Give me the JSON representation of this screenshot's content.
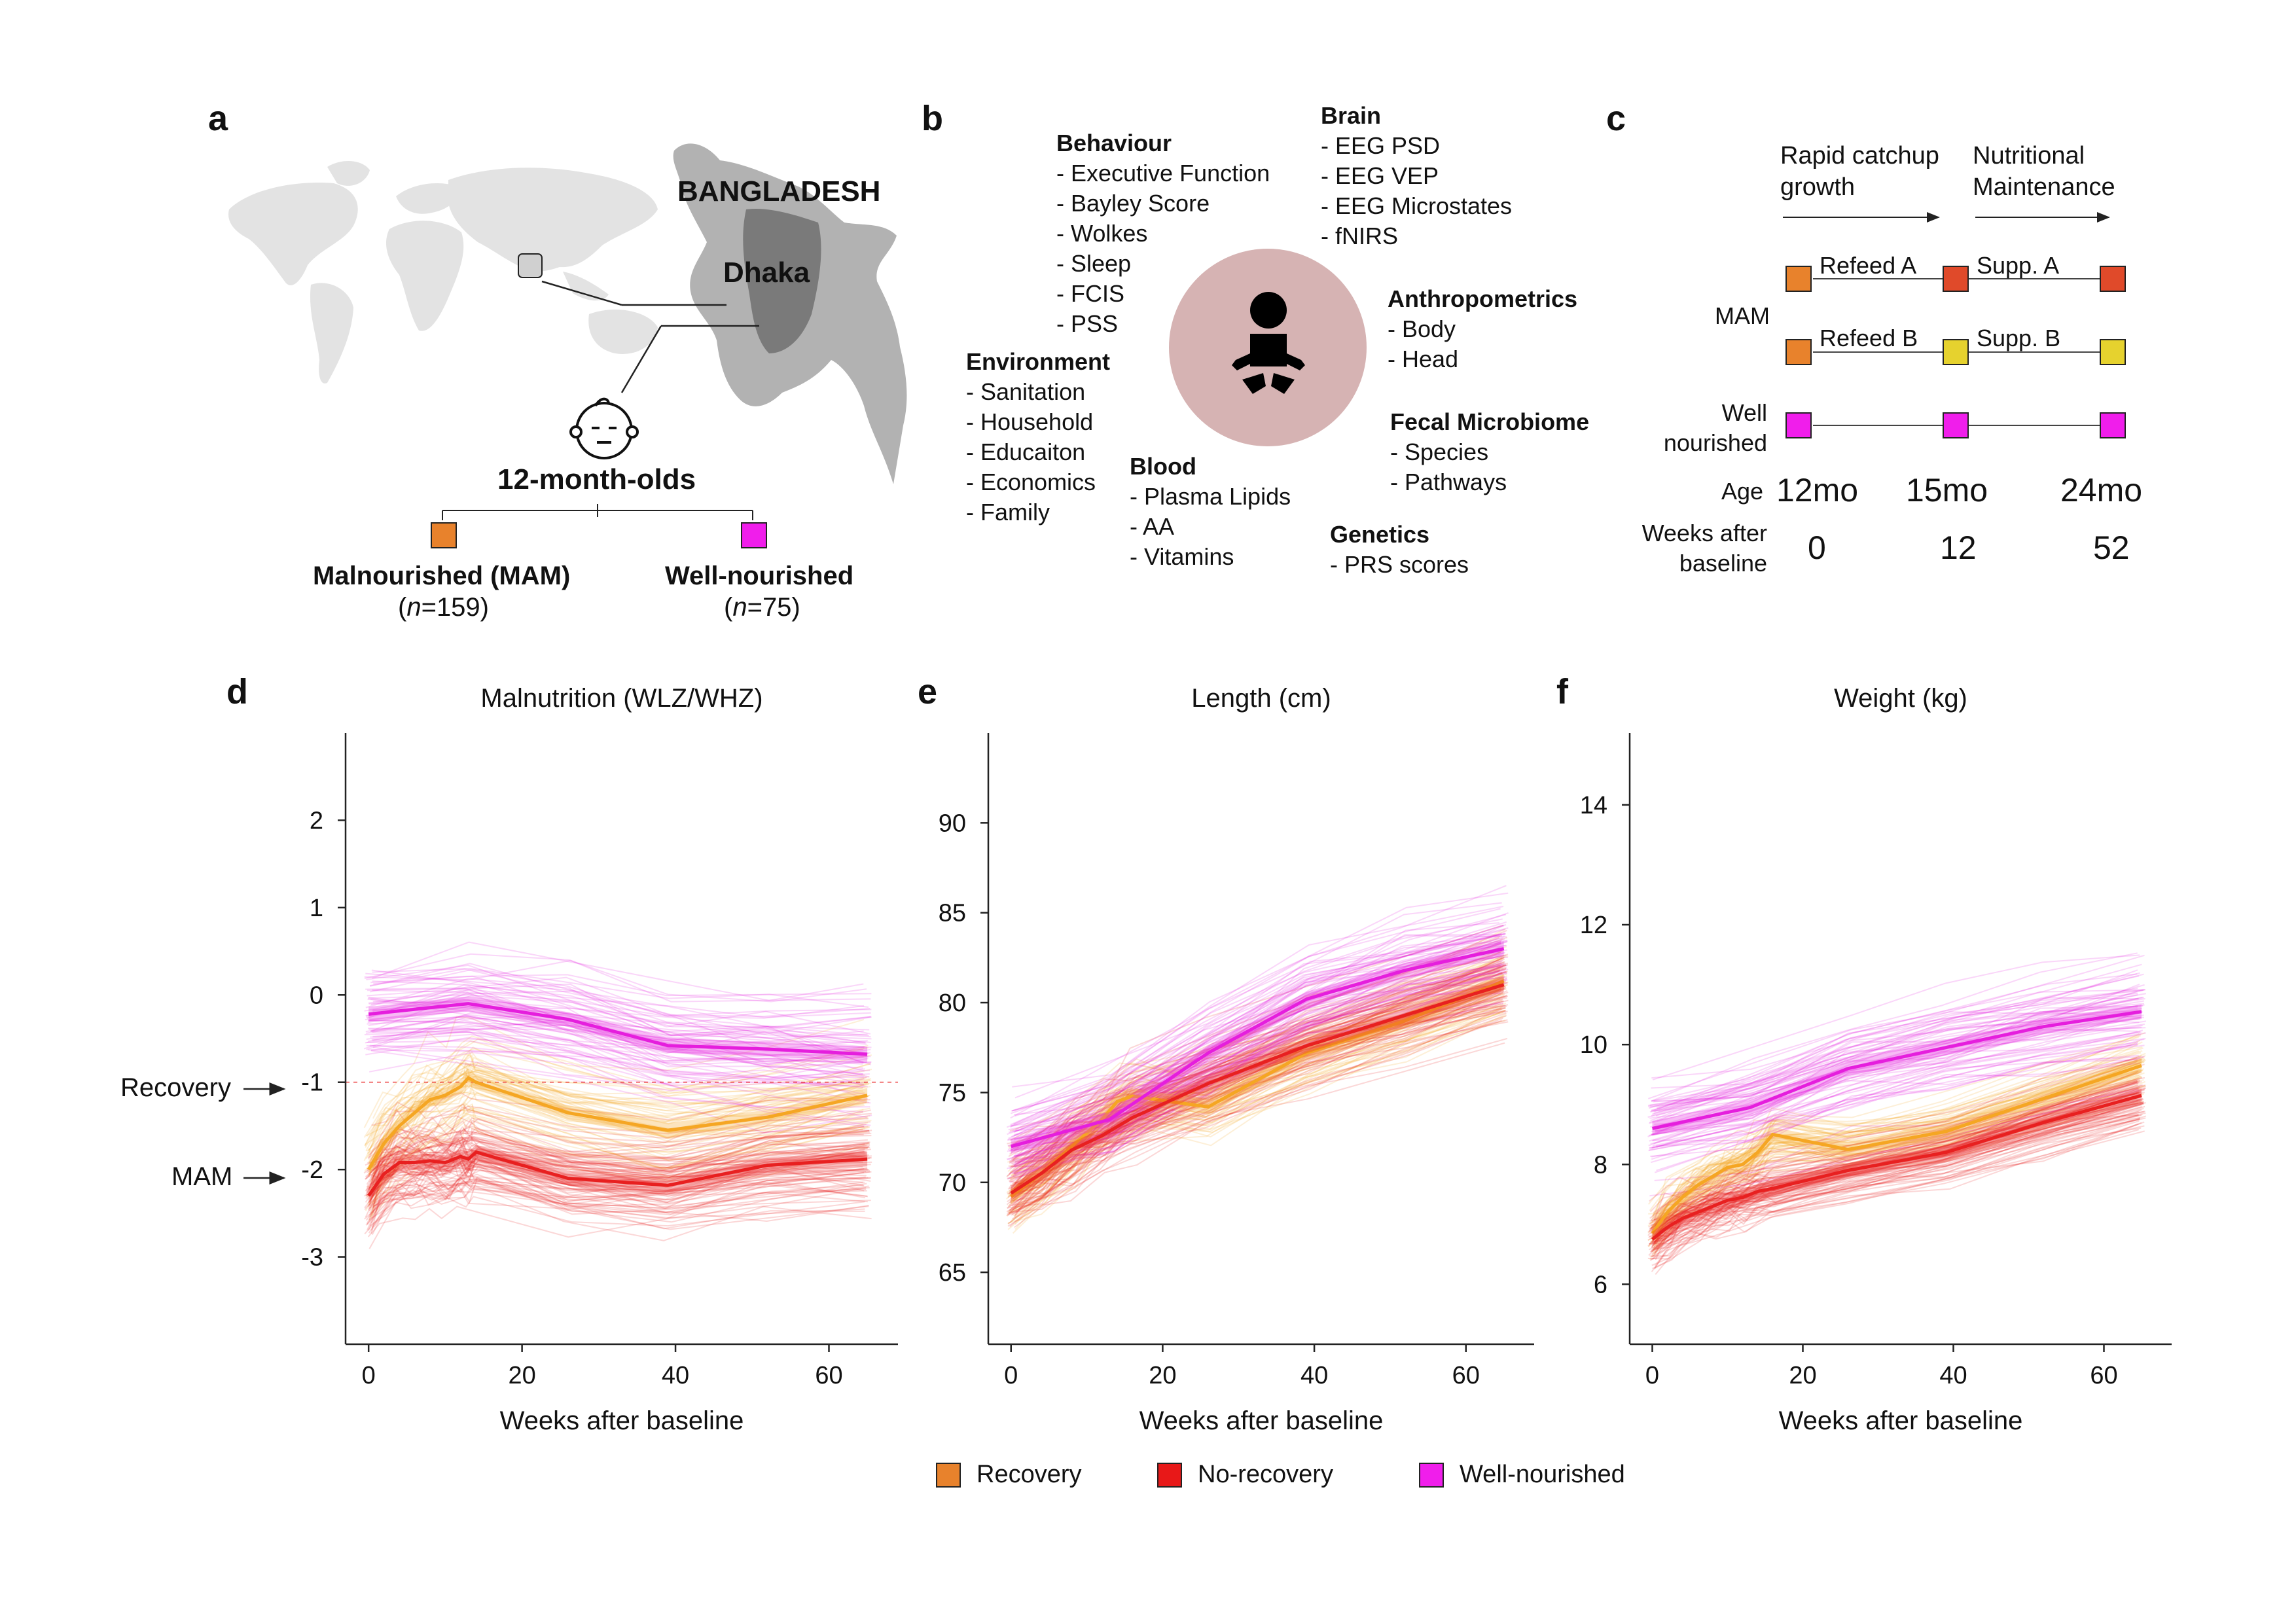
{
  "panels": {
    "a": {
      "label": "a",
      "country": "BANGLADESH",
      "city": "Dhaka",
      "cohort_title": "12-month-olds",
      "groups": [
        {
          "name": "Malnourished (MAM)",
          "n_prefix": "(",
          "n_var": "n",
          "n_value": "=159)",
          "color": "#E8822C"
        },
        {
          "name": "Well-nourished",
          "n_prefix": "(",
          "n_var": "n",
          "n_value": "=75)",
          "color": "#F01EEB"
        }
      ]
    },
    "b": {
      "label": "b",
      "categories": [
        {
          "title": "Behaviour",
          "items": [
            "- Executive Function",
            "- Bayley Score",
            "- Wolkes",
            "- Sleep",
            "- FCIS",
            "- PSS"
          ]
        },
        {
          "title": "Brain",
          "items": [
            "- EEG PSD",
            "- EEG VEP",
            "- EEG Microstates",
            "- fNIRS"
          ]
        },
        {
          "title": "Environment",
          "items": [
            "- Sanitation",
            "- Household",
            "- Educaiton",
            "- Economics",
            "- Family"
          ]
        },
        {
          "title": "Anthropometrics",
          "items": [
            "- Body",
            "- Head"
          ]
        },
        {
          "title": "Blood",
          "items": [
            "- Plasma Lipids",
            "- AA",
            "- Vitamins"
          ]
        },
        {
          "title": "Fecal Microbiome",
          "items": [
            "- Species",
            "- Pathways"
          ]
        },
        {
          "title": "Genetics",
          "items": [
            "- PRS scores"
          ]
        }
      ]
    },
    "c": {
      "label": "c",
      "phase1": "Rapid catchup\ngrowth",
      "phase2": "Nutritional\nMaintenance",
      "row_mam": "MAM",
      "row_wn": "Well\nnourished",
      "refeed_a": "Refeed A",
      "supp_a": "Supp. A",
      "refeed_b": "Refeed B",
      "supp_b": "Supp. B",
      "age_label": "Age",
      "ages": [
        "12mo",
        "15mo",
        "24mo"
      ],
      "weeks_label": "Weeks after\nbaseline",
      "weeks": [
        "0",
        "12",
        "52"
      ],
      "colors": {
        "refeed": "#E8822C",
        "suppA": "#E04A2A",
        "suppB": "#E6D22E",
        "wn": "#F01EEB"
      }
    },
    "d": {
      "label": "d",
      "recovery_annot": "Recovery",
      "mam_annot": "MAM"
    },
    "e": {
      "label": "e"
    },
    "f": {
      "label": "f"
    }
  },
  "legend": [
    {
      "name": "Recovery",
      "color": "#E8822C"
    },
    {
      "name": "No-recovery",
      "color": "#E81818"
    },
    {
      "name": "Well-nourished",
      "color": "#F01EEB"
    }
  ],
  "chart_data": [
    {
      "type": "line",
      "title": "Malnutrition (WLZ/WHZ)",
      "xlabel": "Weeks after baseline",
      "ylabel": "",
      "xlim": [
        -3,
        69
      ],
      "ylim": [
        -4,
        3
      ],
      "xticks": [
        0,
        20,
        40,
        60
      ],
      "yticks": [
        -3,
        -2,
        -1,
        0,
        1,
        2
      ],
      "reference_line": -1,
      "series": [
        {
          "name": "Recovery",
          "color": "#F5A623",
          "x": [
            0,
            2,
            4,
            6,
            8,
            10,
            12,
            13,
            14,
            26,
            39,
            52,
            65
          ],
          "y": [
            -2.0,
            -1.7,
            -1.5,
            -1.35,
            -1.2,
            -1.15,
            -1.05,
            -0.95,
            -1.0,
            -1.35,
            -1.55,
            -1.4,
            -1.15
          ]
        },
        {
          "name": "No-recovery",
          "color": "#E82020",
          "x": [
            0,
            2,
            4,
            6,
            8,
            10,
            12,
            13,
            14,
            26,
            39,
            52,
            65
          ],
          "y": [
            -2.3,
            -2.05,
            -1.92,
            -1.92,
            -1.9,
            -1.92,
            -1.85,
            -1.88,
            -1.8,
            -2.1,
            -2.18,
            -1.95,
            -1.88
          ]
        },
        {
          "name": "Well-nourished",
          "color": "#E51EDD",
          "x": [
            0,
            13,
            26,
            39,
            52,
            65
          ],
          "y": [
            -0.22,
            -0.1,
            -0.28,
            -0.58,
            -0.62,
            -0.68
          ]
        }
      ]
    },
    {
      "type": "line",
      "title": "Length (cm)",
      "xlabel": "Weeks after baseline",
      "ylabel": "",
      "xlim": [
        -3,
        69
      ],
      "ylim": [
        61,
        95
      ],
      "xticks": [
        0,
        20,
        40,
        60
      ],
      "yticks": [
        65,
        70,
        75,
        80,
        85,
        90
      ],
      "series": [
        {
          "name": "Recovery",
          "color": "#F5A623",
          "x": [
            0,
            4,
            8,
            12,
            14,
            16,
            26,
            39,
            52,
            65
          ],
          "y": [
            69.2,
            70.5,
            72.0,
            73.5,
            74.5,
            74.8,
            74.2,
            77.2,
            79.0,
            81.2
          ]
        },
        {
          "name": "No-recovery",
          "color": "#E82020",
          "x": [
            0,
            4,
            8,
            12,
            16,
            26,
            39,
            52,
            65
          ],
          "y": [
            69.4,
            70.5,
            71.8,
            72.6,
            73.6,
            75.5,
            77.6,
            79.3,
            81.0
          ]
        },
        {
          "name": "Well-nourished",
          "color": "#E51EDD",
          "x": [
            0,
            13,
            26,
            39,
            52,
            65
          ],
          "y": [
            72.0,
            73.5,
            77.2,
            80.2,
            81.8,
            83.0
          ]
        }
      ]
    },
    {
      "type": "line",
      "title": "Weight (kg)",
      "xlabel": "Weeks after baseline",
      "ylabel": "",
      "xlim": [
        -3,
        69
      ],
      "ylim": [
        5,
        15.2
      ],
      "xticks": [
        0,
        20,
        40,
        60
      ],
      "yticks": [
        6,
        8,
        10,
        12,
        14
      ],
      "series": [
        {
          "name": "Recovery",
          "color": "#F5A623",
          "x": [
            0,
            2,
            4,
            6,
            8,
            10,
            12,
            14,
            16,
            26,
            39,
            52,
            65
          ],
          "y": [
            6.85,
            7.2,
            7.45,
            7.65,
            7.8,
            7.95,
            8.0,
            8.2,
            8.5,
            8.25,
            8.55,
            9.1,
            9.65
          ]
        },
        {
          "name": "No-recovery",
          "color": "#E82020",
          "x": [
            0,
            2,
            4,
            6,
            8,
            10,
            12,
            14,
            16,
            26,
            39,
            52,
            65
          ],
          "y": [
            6.75,
            6.95,
            7.1,
            7.2,
            7.3,
            7.4,
            7.45,
            7.55,
            7.6,
            7.9,
            8.2,
            8.7,
            9.15
          ]
        },
        {
          "name": "Well-nourished",
          "color": "#E51EDD",
          "x": [
            0,
            13,
            26,
            39,
            52,
            65
          ],
          "y": [
            8.6,
            8.95,
            9.6,
            9.95,
            10.3,
            10.55
          ]
        }
      ]
    }
  ]
}
